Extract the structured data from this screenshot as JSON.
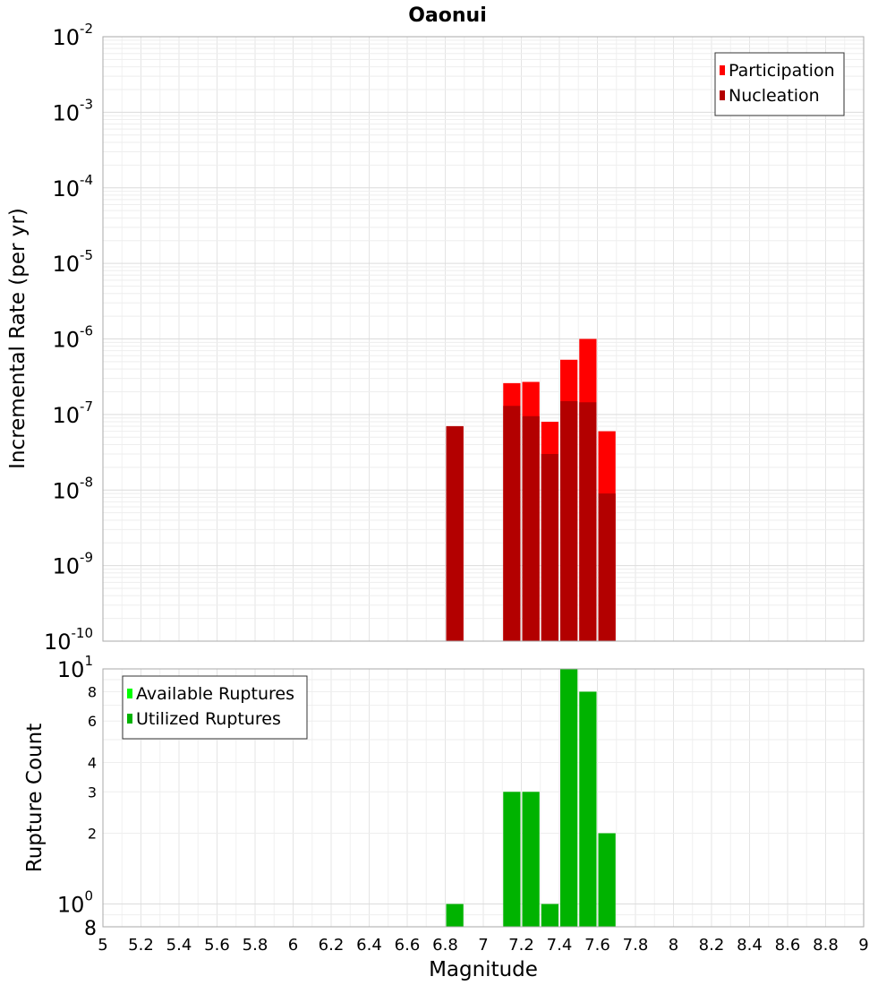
{
  "chart_data": [
    {
      "type": "bar",
      "title": "Oaonui",
      "ylabel": "Incremental Rate (per yr)",
      "xlabel": "",
      "y_scale": "log",
      "ylim": [
        1e-10,
        0.01
      ],
      "xlim": [
        5,
        9
      ],
      "y_tick_labels": [
        {
          "base": "10",
          "exp": "-10",
          "value": 1e-10
        },
        {
          "base": "10",
          "exp": "-9",
          "value": 1e-09
        },
        {
          "base": "10",
          "exp": "-8",
          "value": 1e-08
        },
        {
          "base": "10",
          "exp": "-7",
          "value": 1e-07
        },
        {
          "base": "10",
          "exp": "-6",
          "value": 1e-06
        },
        {
          "base": "10",
          "exp": "-5",
          "value": 1e-05
        },
        {
          "base": "10",
          "exp": "-4",
          "value": 0.0001
        },
        {
          "base": "10",
          "exp": "-3",
          "value": 0.001
        },
        {
          "base": "10",
          "exp": "-2",
          "value": 0.01
        }
      ],
      "bar_width": 0.1,
      "legend": {
        "placement": "top-right",
        "entries": [
          {
            "name": "Participation",
            "color": "#ff0000"
          },
          {
            "name": "Nucleation",
            "color": "#b30000"
          }
        ]
      },
      "series": [
        {
          "name": "Participation",
          "color": "#ff0000",
          "x": [
            6.85,
            7.15,
            7.25,
            7.35,
            7.45,
            7.55,
            7.65
          ],
          "values": [
            7e-08,
            2.6e-07,
            2.7e-07,
            8e-08,
            5.3e-07,
            1e-06,
            6e-08
          ]
        },
        {
          "name": "Nucleation",
          "color": "#b30000",
          "x": [
            6.85,
            7.15,
            7.25,
            7.35,
            7.45,
            7.55,
            7.65
          ],
          "values": [
            7e-08,
            1.3e-07,
            9.5e-08,
            3e-08,
            1.5e-07,
            1.45e-07,
            9e-09
          ]
        }
      ]
    },
    {
      "type": "bar",
      "title": "",
      "ylabel": "Rupture Count",
      "xlabel": "Magnitude",
      "y_scale": "log",
      "ylim": [
        0.8,
        10
      ],
      "xlim": [
        5,
        9
      ],
      "x_ticks": [
        "5",
        "5.2",
        "5.4",
        "5.6",
        "5.8",
        "6",
        "6.2",
        "6.4",
        "6.6",
        "6.8",
        "7",
        "7.2",
        "7.4",
        "7.6",
        "7.8",
        "8",
        "8.2",
        "8.4",
        "8.6",
        "8.8",
        "9"
      ],
      "y_tick_labels_small": [
        {
          "label": "2",
          "value": 2
        },
        {
          "label": "3",
          "value": 3
        },
        {
          "label": "4",
          "value": 4
        },
        {
          "label": "6",
          "value": 6
        },
        {
          "label": "8",
          "value": 8
        }
      ],
      "y_tick_labels_major": [
        {
          "base": "10",
          "exp": "0",
          "value": 1
        },
        {
          "base": "10",
          "exp": "1",
          "value": 10
        }
      ],
      "y_bottom_label": "8",
      "bar_width": 0.1,
      "legend": {
        "placement": "top-left",
        "entries": [
          {
            "name": "Available Ruptures",
            "color": "#00ff00"
          },
          {
            "name": "Utilized Ruptures",
            "color": "#00b300"
          }
        ]
      },
      "series": [
        {
          "name": "Utilized Ruptures",
          "color": "#00b300",
          "x": [
            6.85,
            7.15,
            7.25,
            7.35,
            7.45,
            7.55,
            7.65
          ],
          "values": [
            1,
            3,
            3,
            1,
            10,
            8,
            2
          ]
        }
      ]
    }
  ]
}
